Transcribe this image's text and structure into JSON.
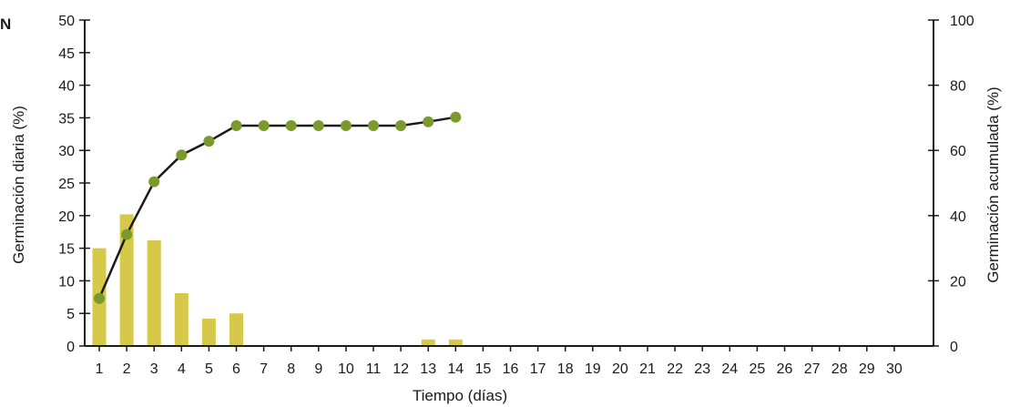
{
  "panel_label": "N",
  "chart_data": {
    "type": "bar",
    "xlabel": "Tiempo (días)",
    "ylabel_left": "Germinación diaria (%)",
    "ylabel_right": "Germinación acumulada (%)",
    "x": [
      1,
      2,
      3,
      4,
      5,
      6,
      7,
      8,
      9,
      10,
      11,
      12,
      13,
      14,
      15,
      16,
      17,
      18,
      19,
      20,
      21,
      22,
      23,
      24,
      25,
      26,
      27,
      28,
      29,
      30
    ],
    "ylim_left": [
      0,
      50
    ],
    "yticks_left": [
      0,
      5,
      10,
      15,
      20,
      25,
      30,
      35,
      40,
      45,
      50
    ],
    "ylim_right": [
      0,
      100
    ],
    "yticks_right": [
      0,
      20,
      40,
      60,
      80,
      100
    ],
    "grid": false,
    "series": [
      {
        "type": "bar",
        "axis": "left",
        "color": "#d6c94a",
        "values": [
          15,
          20.2,
          16.2,
          8.1,
          4.2,
          5,
          0,
          0,
          0,
          0,
          0,
          0,
          1,
          1,
          0,
          0,
          0,
          0,
          0,
          0,
          0,
          0,
          0,
          0,
          0,
          0,
          0,
          0,
          0,
          0
        ]
      },
      {
        "type": "line",
        "axis": "right",
        "line_color": "#1a1a1a",
        "marker_color": "#7a9a2e",
        "x": [
          1,
          2,
          3,
          4,
          5,
          6,
          7,
          8,
          9,
          10,
          11,
          12,
          13,
          14
        ],
        "values": [
          14.6,
          34.2,
          50.4,
          58.6,
          62.8,
          67.6,
          67.6,
          67.6,
          67.6,
          67.6,
          67.6,
          67.6,
          68.8,
          70.2
        ]
      }
    ]
  }
}
